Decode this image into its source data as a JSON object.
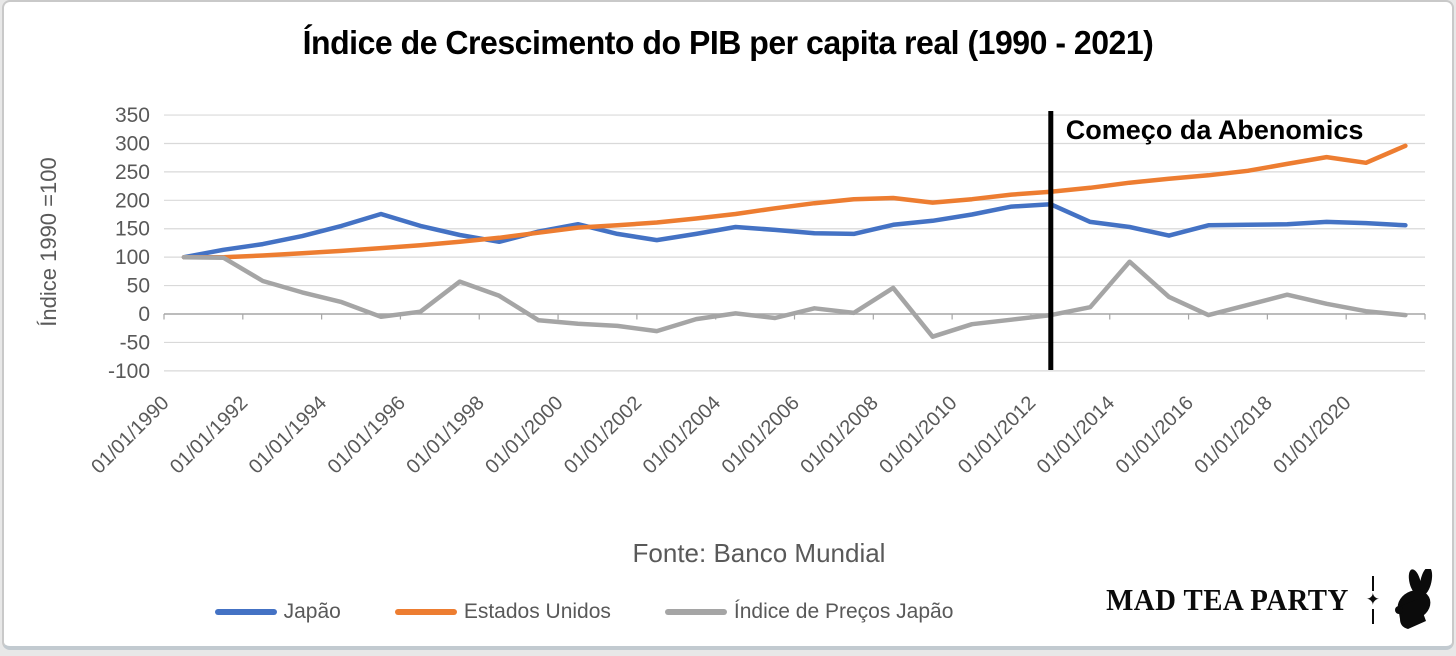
{
  "title": "Índice de Crescimento do PIB per capita real (1990 - 2021)",
  "chart_data": {
    "type": "line",
    "ylabel": "Índice 1990 =100",
    "yticks": [
      350,
      300,
      250,
      200,
      150,
      100,
      50,
      0,
      -50,
      -100
    ],
    "ylim": [
      -100,
      350
    ],
    "grid": true,
    "legend_position": "bottom",
    "x_labels": [
      "01/01/1990",
      "01/01/1992",
      "01/01/1994",
      "01/01/1996",
      "01/01/1998",
      "01/01/2000",
      "01/01/2002",
      "01/01/2004",
      "01/01/2006",
      "01/01/2008",
      "01/01/2010",
      "01/01/2012",
      "01/01/2014",
      "01/01/2016",
      "01/01/2018",
      "01/01/2020"
    ],
    "years": [
      1990,
      1991,
      1992,
      1993,
      1994,
      1995,
      1996,
      1997,
      1998,
      1999,
      2000,
      2001,
      2002,
      2003,
      2004,
      2005,
      2006,
      2007,
      2008,
      2009,
      2010,
      2011,
      2012,
      2013,
      2014,
      2015,
      2016,
      2017,
      2018,
      2019,
      2020,
      2021
    ],
    "series": [
      {
        "name": "Japão",
        "color": "#4472C4",
        "values": [
          100,
          113,
          123,
          137,
          155,
          176,
          155,
          139,
          127,
          145,
          158,
          141,
          130,
          141,
          153,
          148,
          142,
          141,
          157,
          164,
          175,
          189,
          193,
          162,
          153,
          138,
          156,
          157,
          158,
          162,
          160,
          156
        ]
      },
      {
        "name": "Estados Unidos",
        "color": "#ED7D31",
        "values": [
          100,
          100,
          103,
          107,
          111,
          116,
          121,
          127,
          134,
          143,
          152,
          156,
          161,
          168,
          176,
          186,
          195,
          202,
          204,
          196,
          202,
          210,
          215,
          222,
          231,
          238,
          244,
          252,
          264,
          276,
          266,
          296
        ]
      },
      {
        "name": "Índice de Preços Japão",
        "color": "#A5A5A5",
        "values": [
          100,
          99,
          58,
          38,
          21,
          -5,
          4,
          57,
          32,
          -11,
          -17,
          -21,
          -30,
          -9,
          1,
          -7,
          10,
          2,
          46,
          -40,
          -18,
          -10,
          -2,
          12,
          92,
          30,
          -2,
          16,
          34,
          18,
          5,
          -2
        ]
      }
    ],
    "annotation": {
      "label": "Começo da Abenomics",
      "year": 2012
    },
    "colors": {
      "grid": "#D9D9D9",
      "axis": "#A6A6A6",
      "tick_text": "#595959",
      "annotation_line": "#000000"
    }
  },
  "footer": {
    "source": "Fonte: Banco Mundial"
  },
  "logo": {
    "text": "MAD TEA PARTY",
    "sparkle": "✦",
    "rabbit": "rabbit-silhouette"
  }
}
